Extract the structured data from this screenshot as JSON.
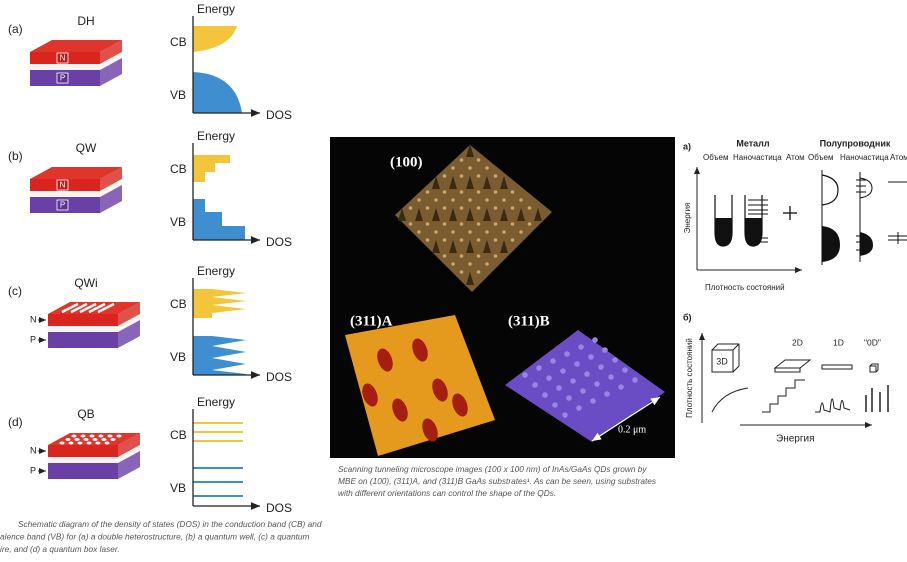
{
  "figure_dos": {
    "rows": [
      {
        "letter": "(a)",
        "title": "DH",
        "n": "N",
        "p": "P",
        "energy": "Energy",
        "cb": "CB",
        "vb": "VB",
        "dos": "DOS"
      },
      {
        "letter": "(b)",
        "title": "QW",
        "n": "N",
        "p": "P",
        "energy": "Energy",
        "cb": "CB",
        "vb": "VB",
        "dos": "DOS"
      },
      {
        "letter": "(c)",
        "title": "QWi",
        "n": "N",
        "p": "P",
        "energy": "Energy",
        "cb": "CB",
        "vb": "VB",
        "dos": "DOS"
      },
      {
        "letter": "(d)",
        "title": "QB",
        "n": "N",
        "p": "P",
        "energy": "Energy",
        "cb": "CB",
        "vb": "VB",
        "dos": "DOS"
      }
    ],
    "caption": [
      "Schematic diagram of the density of states (DOS) in the conduction band (CB) and",
      "alence band (VB) for (a) a double heterostructure, (b) a quantum well, (c) a quantum",
      "ire, and (d) a quantum box laser."
    ]
  },
  "figure_stm": {
    "panels": [
      "(100)",
      "(311)A",
      "(311)B"
    ],
    "scale_bar": "0.2 μm",
    "caption": [
      "Scanning tunneling microscope images (100 x 100 nm) of InAs/GaAs QDs grown by",
      "MBE on (100), (311)A, and (311)B GaAs substrates¹. As can be seen, using substrates",
      "with different orientations can control the shape of the QDs."
    ]
  },
  "figure_ru": {
    "a": {
      "label": "а)",
      "groups": [
        "Металл",
        "Полупроводник"
      ],
      "columns": [
        "Объем",
        "Наночастица",
        "Атом",
        "Объем",
        "Наночастица",
        "Атом"
      ],
      "y_axis": "Энергия",
      "x_axis": "Плотность состояний"
    },
    "b": {
      "label": "б)",
      "dims": [
        "3D",
        "2D",
        "1D",
        "\"0D\""
      ],
      "y_axis": "Плотность состояний",
      "x_axis": "Энергия"
    }
  }
}
